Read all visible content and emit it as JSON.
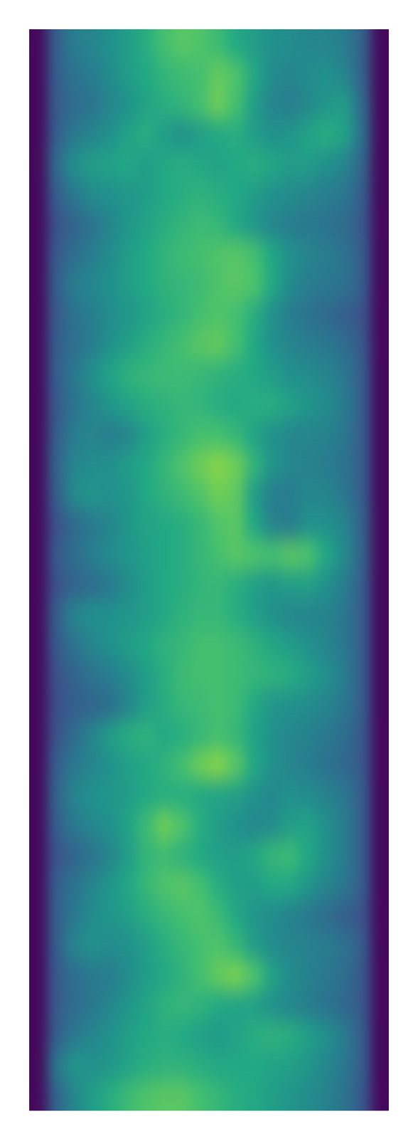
{
  "chart_data": {
    "type": "heatmap",
    "tick_labels": false,
    "zlim": [
      0,
      1
    ],
    "cells": [
      [
        0.02,
        0.3,
        0.42,
        0.45,
        0.5,
        0.55,
        0.62,
        0.7,
        0.74,
        0.72,
        0.68,
        0.6,
        0.55,
        0.5,
        0.48,
        0.46,
        0.45,
        0.42,
        0.32,
        0.02
      ],
      [
        0.02,
        0.3,
        0.38,
        0.42,
        0.48,
        0.55,
        0.6,
        0.65,
        0.68,
        0.7,
        0.76,
        0.72,
        0.6,
        0.48,
        0.45,
        0.48,
        0.5,
        0.45,
        0.32,
        0.02
      ],
      [
        0.02,
        0.28,
        0.35,
        0.38,
        0.45,
        0.5,
        0.58,
        0.62,
        0.65,
        0.7,
        0.78,
        0.7,
        0.55,
        0.45,
        0.42,
        0.46,
        0.52,
        0.55,
        0.35,
        0.02
      ],
      [
        0.02,
        0.3,
        0.4,
        0.45,
        0.5,
        0.58,
        0.62,
        0.55,
        0.5,
        0.55,
        0.6,
        0.62,
        0.55,
        0.5,
        0.52,
        0.58,
        0.62,
        0.58,
        0.38,
        0.02
      ],
      [
        0.02,
        0.35,
        0.5,
        0.55,
        0.58,
        0.6,
        0.55,
        0.6,
        0.62,
        0.6,
        0.58,
        0.6,
        0.62,
        0.6,
        0.55,
        0.55,
        0.5,
        0.45,
        0.33,
        0.02
      ],
      [
        0.02,
        0.3,
        0.4,
        0.48,
        0.5,
        0.52,
        0.55,
        0.6,
        0.62,
        0.64,
        0.62,
        0.6,
        0.55,
        0.5,
        0.48,
        0.45,
        0.42,
        0.4,
        0.3,
        0.02
      ],
      [
        0.02,
        0.25,
        0.32,
        0.38,
        0.45,
        0.52,
        0.58,
        0.62,
        0.65,
        0.68,
        0.66,
        0.6,
        0.52,
        0.45,
        0.42,
        0.4,
        0.38,
        0.35,
        0.28,
        0.02
      ],
      [
        0.02,
        0.28,
        0.36,
        0.42,
        0.48,
        0.55,
        0.6,
        0.65,
        0.68,
        0.7,
        0.72,
        0.74,
        0.7,
        0.6,
        0.5,
        0.45,
        0.42,
        0.38,
        0.3,
        0.02
      ],
      [
        0.02,
        0.3,
        0.42,
        0.46,
        0.5,
        0.55,
        0.6,
        0.64,
        0.66,
        0.68,
        0.72,
        0.74,
        0.72,
        0.6,
        0.48,
        0.42,
        0.4,
        0.38,
        0.3,
        0.02
      ],
      [
        0.02,
        0.28,
        0.38,
        0.42,
        0.48,
        0.52,
        0.58,
        0.62,
        0.65,
        0.7,
        0.72,
        0.7,
        0.62,
        0.5,
        0.42,
        0.38,
        0.34,
        0.3,
        0.26,
        0.02
      ],
      [
        0.02,
        0.3,
        0.36,
        0.42,
        0.5,
        0.56,
        0.62,
        0.66,
        0.7,
        0.74,
        0.76,
        0.7,
        0.6,
        0.5,
        0.45,
        0.42,
        0.4,
        0.36,
        0.28,
        0.02
      ],
      [
        0.02,
        0.3,
        0.4,
        0.5,
        0.58,
        0.64,
        0.66,
        0.68,
        0.68,
        0.66,
        0.64,
        0.62,
        0.6,
        0.55,
        0.5,
        0.48,
        0.45,
        0.4,
        0.3,
        0.02
      ],
      [
        0.02,
        0.28,
        0.38,
        0.45,
        0.52,
        0.58,
        0.62,
        0.64,
        0.66,
        0.65,
        0.62,
        0.6,
        0.62,
        0.62,
        0.58,
        0.52,
        0.48,
        0.42,
        0.3,
        0.02
      ],
      [
        0.02,
        0.3,
        0.42,
        0.45,
        0.42,
        0.45,
        0.55,
        0.62,
        0.66,
        0.7,
        0.7,
        0.66,
        0.58,
        0.5,
        0.46,
        0.45,
        0.44,
        0.4,
        0.3,
        0.02
      ],
      [
        0.02,
        0.32,
        0.45,
        0.48,
        0.5,
        0.55,
        0.6,
        0.66,
        0.72,
        0.78,
        0.82,
        0.78,
        0.65,
        0.52,
        0.46,
        0.44,
        0.42,
        0.38,
        0.3,
        0.02
      ],
      [
        0.02,
        0.3,
        0.48,
        0.52,
        0.5,
        0.52,
        0.6,
        0.64,
        0.68,
        0.72,
        0.78,
        0.75,
        0.55,
        0.42,
        0.42,
        0.46,
        0.45,
        0.4,
        0.3,
        0.02
      ],
      [
        0.02,
        0.25,
        0.34,
        0.4,
        0.45,
        0.52,
        0.58,
        0.6,
        0.62,
        0.66,
        0.72,
        0.74,
        0.6,
        0.45,
        0.42,
        0.5,
        0.5,
        0.45,
        0.32,
        0.02
      ],
      [
        0.02,
        0.28,
        0.36,
        0.42,
        0.48,
        0.52,
        0.56,
        0.6,
        0.62,
        0.66,
        0.7,
        0.74,
        0.72,
        0.7,
        0.74,
        0.72,
        0.6,
        0.48,
        0.32,
        0.02
      ],
      [
        0.02,
        0.25,
        0.32,
        0.35,
        0.4,
        0.48,
        0.55,
        0.6,
        0.62,
        0.65,
        0.66,
        0.62,
        0.56,
        0.52,
        0.55,
        0.56,
        0.5,
        0.42,
        0.3,
        0.02
      ],
      [
        0.02,
        0.3,
        0.45,
        0.5,
        0.5,
        0.52,
        0.55,
        0.6,
        0.64,
        0.66,
        0.66,
        0.62,
        0.56,
        0.5,
        0.46,
        0.45,
        0.44,
        0.4,
        0.3,
        0.02
      ],
      [
        0.02,
        0.28,
        0.38,
        0.45,
        0.5,
        0.55,
        0.6,
        0.64,
        0.66,
        0.7,
        0.7,
        0.68,
        0.64,
        0.6,
        0.55,
        0.5,
        0.45,
        0.4,
        0.3,
        0.02
      ],
      [
        0.02,
        0.25,
        0.32,
        0.38,
        0.42,
        0.48,
        0.55,
        0.62,
        0.68,
        0.7,
        0.7,
        0.68,
        0.66,
        0.64,
        0.62,
        0.56,
        0.5,
        0.42,
        0.3,
        0.02
      ],
      [
        0.02,
        0.24,
        0.3,
        0.32,
        0.36,
        0.45,
        0.55,
        0.62,
        0.66,
        0.68,
        0.7,
        0.68,
        0.6,
        0.52,
        0.5,
        0.48,
        0.45,
        0.4,
        0.3,
        0.02
      ],
      [
        0.02,
        0.26,
        0.35,
        0.45,
        0.55,
        0.62,
        0.64,
        0.6,
        0.62,
        0.66,
        0.7,
        0.66,
        0.58,
        0.5,
        0.46,
        0.44,
        0.4,
        0.36,
        0.28,
        0.02
      ],
      [
        0.02,
        0.3,
        0.4,
        0.45,
        0.5,
        0.56,
        0.6,
        0.64,
        0.7,
        0.78,
        0.82,
        0.74,
        0.6,
        0.5,
        0.45,
        0.42,
        0.38,
        0.34,
        0.28,
        0.02
      ],
      [
        0.02,
        0.32,
        0.45,
        0.5,
        0.52,
        0.55,
        0.6,
        0.62,
        0.62,
        0.6,
        0.58,
        0.56,
        0.5,
        0.46,
        0.5,
        0.48,
        0.44,
        0.4,
        0.3,
        0.02
      ],
      [
        0.02,
        0.3,
        0.4,
        0.46,
        0.5,
        0.58,
        0.68,
        0.78,
        0.72,
        0.62,
        0.55,
        0.5,
        0.46,
        0.48,
        0.55,
        0.58,
        0.5,
        0.42,
        0.3,
        0.02
      ],
      [
        0.02,
        0.26,
        0.32,
        0.38,
        0.45,
        0.55,
        0.65,
        0.68,
        0.64,
        0.6,
        0.56,
        0.55,
        0.6,
        0.66,
        0.68,
        0.6,
        0.5,
        0.42,
        0.3,
        0.02
      ],
      [
        0.02,
        0.3,
        0.38,
        0.45,
        0.52,
        0.6,
        0.66,
        0.72,
        0.74,
        0.7,
        0.62,
        0.56,
        0.55,
        0.6,
        0.6,
        0.52,
        0.45,
        0.4,
        0.3,
        0.02
      ],
      [
        0.02,
        0.3,
        0.4,
        0.48,
        0.52,
        0.56,
        0.62,
        0.66,
        0.7,
        0.72,
        0.68,
        0.6,
        0.52,
        0.48,
        0.44,
        0.4,
        0.35,
        0.3,
        0.26,
        0.02
      ],
      [
        0.02,
        0.3,
        0.45,
        0.5,
        0.48,
        0.5,
        0.55,
        0.62,
        0.66,
        0.7,
        0.72,
        0.66,
        0.55,
        0.48,
        0.45,
        0.44,
        0.42,
        0.38,
        0.3,
        0.02
      ],
      [
        0.02,
        0.28,
        0.36,
        0.4,
        0.42,
        0.48,
        0.55,
        0.6,
        0.64,
        0.7,
        0.76,
        0.8,
        0.72,
        0.58,
        0.48,
        0.44,
        0.4,
        0.36,
        0.28,
        0.02
      ],
      [
        0.02,
        0.28,
        0.35,
        0.4,
        0.45,
        0.52,
        0.58,
        0.64,
        0.66,
        0.64,
        0.6,
        0.58,
        0.56,
        0.5,
        0.46,
        0.42,
        0.38,
        0.34,
        0.28,
        0.02
      ],
      [
        0.02,
        0.3,
        0.4,
        0.45,
        0.5,
        0.56,
        0.6,
        0.62,
        0.6,
        0.56,
        0.54,
        0.58,
        0.62,
        0.64,
        0.62,
        0.56,
        0.5,
        0.42,
        0.3,
        0.02
      ],
      [
        0.02,
        0.4,
        0.52,
        0.5,
        0.52,
        0.58,
        0.62,
        0.64,
        0.64,
        0.62,
        0.6,
        0.6,
        0.6,
        0.58,
        0.56,
        0.52,
        0.46,
        0.4,
        0.3,
        0.02
      ],
      [
        0.02,
        0.32,
        0.45,
        0.55,
        0.62,
        0.68,
        0.72,
        0.74,
        0.74,
        0.7,
        0.66,
        0.62,
        0.6,
        0.56,
        0.52,
        0.48,
        0.44,
        0.38,
        0.28,
        0.02
      ]
    ]
  }
}
